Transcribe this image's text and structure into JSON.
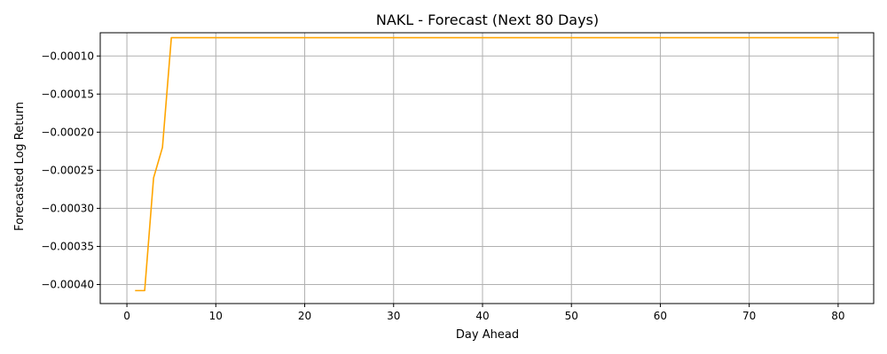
{
  "chart_data": {
    "type": "line",
    "title": "NAKL - Forecast (Next 80 Days)",
    "xlabel": "Day Ahead",
    "ylabel": "Forecasted Log Return",
    "xlim": [
      -3,
      84
    ],
    "ylim": [
      -0.000425,
      -6.95e-05
    ],
    "grid": true,
    "xticks": [
      0,
      10,
      20,
      30,
      40,
      50,
      60,
      70,
      80
    ],
    "xtick_labels": [
      "0",
      "10",
      "20",
      "30",
      "40",
      "50",
      "60",
      "70",
      "80"
    ],
    "yticks": [
      -0.0001,
      -0.00015,
      -0.0002,
      -0.00025,
      -0.0003,
      -0.00035,
      -0.0004
    ],
    "ytick_labels": [
      "−0.00010",
      "−0.00015",
      "−0.00020",
      "−0.00025",
      "−0.00030",
      "−0.00035",
      "−0.00040"
    ],
    "series": [
      {
        "color": "#ffa500",
        "x": [
          1,
          2,
          3,
          4,
          5,
          6,
          7,
          8,
          9,
          10,
          11,
          12,
          13,
          14,
          15,
          16,
          17,
          18,
          19,
          20,
          21,
          22,
          23,
          24,
          25,
          26,
          27,
          28,
          29,
          30,
          31,
          32,
          33,
          34,
          35,
          36,
          37,
          38,
          39,
          40,
          41,
          42,
          43,
          44,
          45,
          46,
          47,
          48,
          49,
          50,
          51,
          52,
          53,
          54,
          55,
          56,
          57,
          58,
          59,
          60,
          61,
          62,
          63,
          64,
          65,
          66,
          67,
          68,
          69,
          70,
          71,
          72,
          73,
          74,
          75,
          76,
          77,
          78,
          79,
          80
        ],
        "y": [
          -0.000408,
          -0.000408,
          -0.00026,
          -0.00022,
          -7.6e-05,
          -7.6e-05,
          -7.6e-05,
          -7.6e-05,
          -7.6e-05,
          -7.6e-05,
          -7.6e-05,
          -7.6e-05,
          -7.6e-05,
          -7.6e-05,
          -7.6e-05,
          -7.6e-05,
          -7.6e-05,
          -7.6e-05,
          -7.6e-05,
          -7.6e-05,
          -7.6e-05,
          -7.6e-05,
          -7.6e-05,
          -7.6e-05,
          -7.6e-05,
          -7.6e-05,
          -7.6e-05,
          -7.6e-05,
          -7.6e-05,
          -7.6e-05,
          -7.6e-05,
          -7.6e-05,
          -7.6e-05,
          -7.6e-05,
          -7.6e-05,
          -7.6e-05,
          -7.6e-05,
          -7.6e-05,
          -7.6e-05,
          -7.6e-05,
          -7.6e-05,
          -7.6e-05,
          -7.6e-05,
          -7.6e-05,
          -7.6e-05,
          -7.6e-05,
          -7.6e-05,
          -7.6e-05,
          -7.6e-05,
          -7.6e-05,
          -7.6e-05,
          -7.6e-05,
          -7.6e-05,
          -7.6e-05,
          -7.6e-05,
          -7.6e-05,
          -7.6e-05,
          -7.6e-05,
          -7.6e-05,
          -7.6e-05,
          -7.6e-05,
          -7.6e-05,
          -7.6e-05,
          -7.6e-05,
          -7.6e-05,
          -7.6e-05,
          -7.6e-05,
          -7.6e-05,
          -7.6e-05,
          -7.6e-05,
          -7.6e-05,
          -7.6e-05,
          -7.6e-05,
          -7.6e-05,
          -7.6e-05,
          -7.6e-05,
          -7.6e-05,
          -7.6e-05,
          -7.6e-05,
          -7.6e-05
        ]
      }
    ]
  }
}
